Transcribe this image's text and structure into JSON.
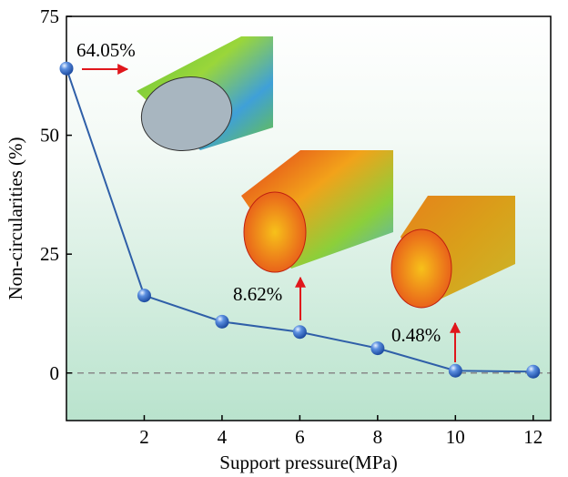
{
  "chart_data": {
    "type": "line",
    "x_label": "Support pressure(MPa)",
    "y_label": "Non-circularities (%)",
    "x": [
      0,
      2,
      4,
      6,
      8,
      10,
      12
    ],
    "series": [
      {
        "color": "#2f5fa8",
        "values": [
          64.05,
          16.3,
          10.8,
          8.62,
          5.2,
          0.48,
          0.3
        ]
      }
    ],
    "xlim": [
      0,
      12.45
    ],
    "ylim": [
      -10,
      75
    ],
    "xticks": [
      2,
      4,
      6,
      8,
      10,
      12
    ],
    "yticks": [
      0,
      25,
      50,
      75
    ],
    "reference_line": 0,
    "annotations": [
      "64.05%",
      "8.62%",
      "0.48%"
    ]
  }
}
